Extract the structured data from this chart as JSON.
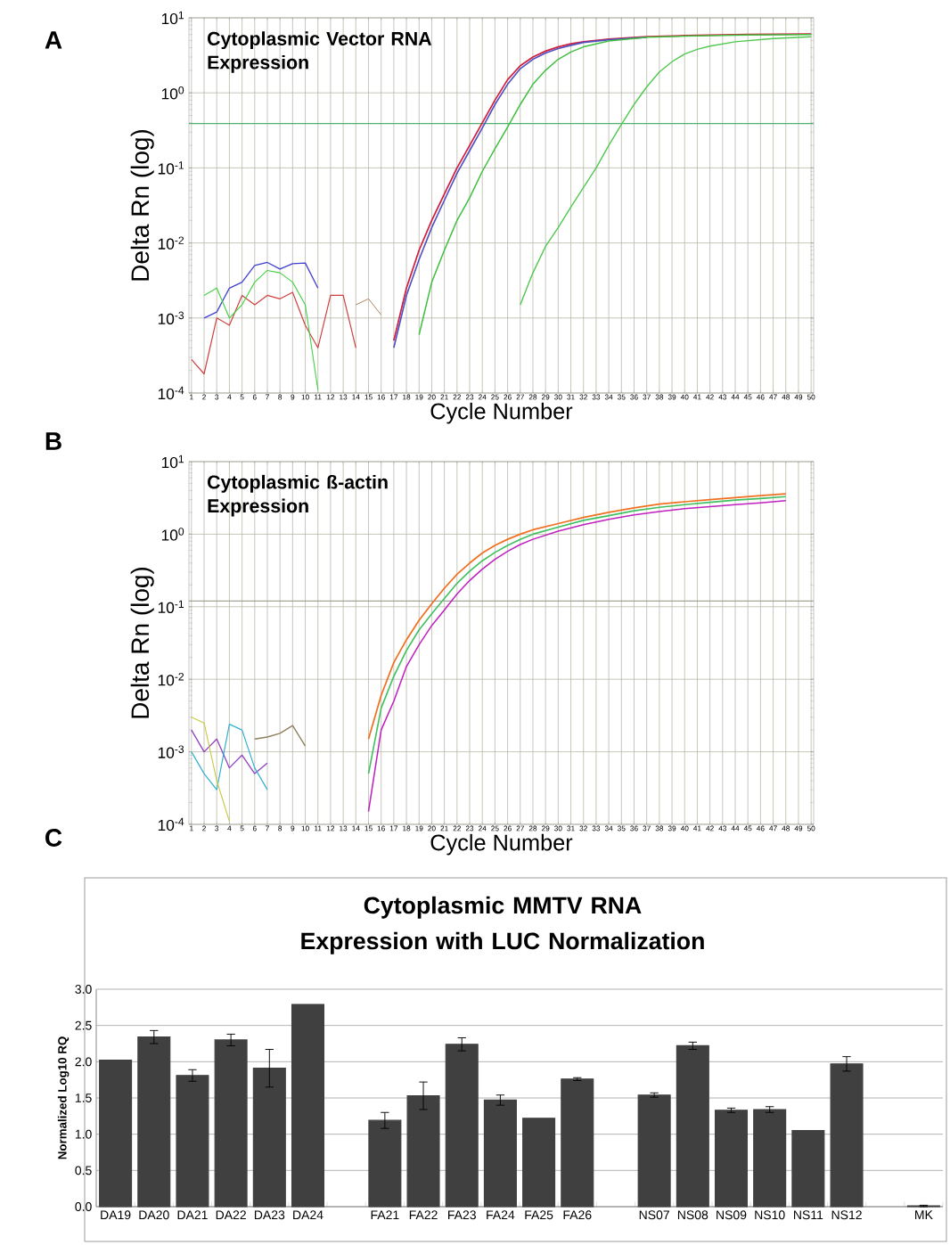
{
  "chart_data": [
    {
      "type": "line",
      "title": "Cytoplasmic Vector RNA Expression",
      "xlabel": "Cycle Number",
      "ylabel": "Delta Rn (log)",
      "annotations": [
        "A"
      ],
      "log": "y",
      "grid": true,
      "xlim": [
        0.8,
        50.2
      ],
      "xticks": [
        1,
        2,
        3,
        4,
        5,
        6,
        7,
        8,
        9,
        10,
        11,
        12,
        13,
        14,
        15,
        16,
        17,
        18,
        19,
        20,
        21,
        22,
        23,
        24,
        25,
        26,
        27,
        28,
        29,
        30,
        31,
        32,
        33,
        34,
        35,
        36,
        37,
        38,
        39,
        40,
        41,
        42,
        43,
        44,
        45,
        46,
        47,
        48,
        49,
        50
      ],
      "ylim": [
        0.0001,
        10
      ],
      "yticks": [
        {
          "value": 0.0001,
          "label": "10$^{-4}$"
        },
        {
          "value": 0.001,
          "label": "10$^{-3}$"
        },
        {
          "value": 0.01,
          "label": "10$^{-2}$"
        },
        {
          "value": 0.1,
          "label": "10$^{-1}$"
        },
        {
          "value": 1,
          "label": "10$^{0}$"
        },
        {
          "value": 10,
          "label": "10$^{1}$"
        }
      ],
      "ref_lines": [
        {
          "axis": "y",
          "value": 0.39,
          "color": "#50b070"
        }
      ],
      "series": [
        {
          "color": "#d02040",
          "x": [
            17,
            18,
            19,
            20,
            21,
            22,
            23,
            24,
            25,
            26,
            27,
            28,
            29,
            30,
            31,
            32,
            34,
            37,
            40,
            45,
            50
          ],
          "values": [
            0.0005,
            0.0025,
            0.008,
            0.02,
            0.045,
            0.1,
            0.2,
            0.4,
            0.8,
            1.5,
            2.3,
            3.0,
            3.6,
            4.1,
            4.5,
            4.8,
            5.2,
            5.6,
            5.8,
            6.0,
            6.1
          ]
        },
        {
          "color": "#5050c0",
          "x": [
            17,
            18,
            19,
            20,
            21,
            22,
            23,
            24,
            25,
            26,
            27,
            28,
            29,
            30,
            31,
            32,
            34,
            37
          ],
          "values": [
            0.0004,
            0.002,
            0.006,
            0.016,
            0.037,
            0.085,
            0.17,
            0.34,
            0.7,
            1.3,
            2.1,
            2.8,
            3.4,
            3.9,
            4.3,
            4.7,
            5.1,
            5.5
          ]
        },
        {
          "color": "#40c040",
          "x": [
            19,
            20,
            21,
            22,
            23,
            24,
            25,
            26,
            27,
            28,
            29,
            30,
            31,
            32,
            34,
            37,
            40,
            45,
            50
          ],
          "values": [
            0.0006,
            0.003,
            0.008,
            0.02,
            0.04,
            0.09,
            0.18,
            0.35,
            0.7,
            1.3,
            2.0,
            2.8,
            3.5,
            4.1,
            4.9,
            5.5,
            5.7,
            5.9,
            6.0
          ]
        },
        {
          "color": "#50c850",
          "x": [
            27,
            28,
            29,
            30,
            31,
            32,
            33,
            34,
            35,
            36,
            37,
            38,
            39,
            40,
            41,
            42,
            44,
            47,
            50
          ],
          "values": [
            0.0015,
            0.004,
            0.009,
            0.016,
            0.03,
            0.055,
            0.1,
            0.2,
            0.38,
            0.7,
            1.2,
            1.9,
            2.6,
            3.3,
            3.8,
            4.2,
            4.8,
            5.3,
            5.6
          ]
        },
        {
          "color": "#4040d0",
          "x": [
            2,
            3,
            4,
            5,
            6,
            7,
            8,
            9,
            10,
            11
          ],
          "values": [
            0.001,
            0.0012,
            0.0025,
            0.003,
            0.005,
            0.0055,
            0.0045,
            0.0053,
            0.0054,
            0.0025
          ]
        },
        {
          "color": "#d04040",
          "x": [
            1,
            2,
            3,
            4,
            5,
            6,
            7,
            8,
            9,
            10,
            11,
            12,
            13,
            14
          ],
          "values": [
            0.00028,
            0.00018,
            0.001,
            0.0008,
            0.002,
            0.0015,
            0.002,
            0.0018,
            0.0022,
            0.0008,
            0.0004,
            0.002,
            0.002,
            0.0004
          ]
        },
        {
          "color": "#40d040",
          "x": [
            2,
            3,
            4,
            5,
            6,
            7,
            8,
            9,
            10,
            11
          ],
          "values": [
            0.002,
            0.0025,
            0.001,
            0.0015,
            0.003,
            0.0043,
            0.004,
            0.003,
            0.0015,
            0.00011
          ]
        },
        {
          "color": "#b08060",
          "x": [
            14,
            15,
            16
          ],
          "values": [
            0.0015,
            0.0018,
            0.0011
          ]
        }
      ]
    },
    {
      "type": "line",
      "title": "Cytoplasmic ß-actin Expression",
      "xlabel": "Cycle Number",
      "ylabel": "Delta Rn (log)",
      "annotations": [
        "B"
      ],
      "log": "y",
      "grid": true,
      "xlim": [
        0.8,
        50.2
      ],
      "xticks": [
        1,
        2,
        3,
        4,
        5,
        6,
        7,
        8,
        9,
        10,
        11,
        12,
        13,
        14,
        15,
        16,
        17,
        18,
        19,
        20,
        21,
        22,
        23,
        24,
        25,
        26,
        27,
        28,
        29,
        30,
        31,
        32,
        33,
        34,
        35,
        36,
        37,
        38,
        39,
        40,
        41,
        42,
        43,
        44,
        45,
        46,
        47,
        48,
        49,
        50
      ],
      "ylim": [
        0.0001,
        10
      ],
      "yticks": [
        {
          "value": 0.0001,
          "label": "10$^{-4}$"
        },
        {
          "value": 0.001,
          "label": "10$^{-3}$"
        },
        {
          "value": 0.01,
          "label": "10$^{-2}$"
        },
        {
          "value": 0.1,
          "label": "10$^{-1}$"
        },
        {
          "value": 1,
          "label": "10$^{0}$"
        },
        {
          "value": 10,
          "label": "10$^{1}$"
        }
      ],
      "ref_lines": [
        {
          "axis": "y",
          "value": 0.12,
          "color": "#a0a090"
        }
      ],
      "series": [
        {
          "color": "#f07020",
          "x": [
            15,
            16,
            17,
            18,
            19,
            20,
            21,
            22,
            23,
            24,
            25,
            26,
            27,
            28,
            30,
            32,
            34,
            36,
            38,
            40,
            42,
            44,
            46,
            48
          ],
          "values": [
            0.0015,
            0.006,
            0.017,
            0.035,
            0.065,
            0.11,
            0.18,
            0.28,
            0.4,
            0.55,
            0.7,
            0.85,
            1.0,
            1.15,
            1.4,
            1.7,
            2.0,
            2.3,
            2.6,
            2.8,
            3.0,
            3.2,
            3.4,
            3.6
          ]
        },
        {
          "color": "#40c060",
          "x": [
            15,
            16,
            17,
            18,
            19,
            20,
            21,
            22,
            23,
            24,
            25,
            26,
            27,
            28,
            30,
            32,
            34,
            36,
            38,
            40,
            42,
            44,
            46,
            48
          ],
          "values": [
            0.0005,
            0.004,
            0.011,
            0.025,
            0.048,
            0.08,
            0.13,
            0.21,
            0.31,
            0.43,
            0.56,
            0.7,
            0.85,
            1.0,
            1.25,
            1.55,
            1.8,
            2.1,
            2.35,
            2.55,
            2.75,
            2.95,
            3.1,
            3.3
          ]
        },
        {
          "color": "#c020c0",
          "x": [
            15,
            16,
            17,
            18,
            19,
            20,
            21,
            22,
            23,
            24,
            25,
            26,
            27,
            28,
            30,
            32,
            34,
            36,
            38,
            40,
            42,
            44,
            46,
            48
          ],
          "values": [
            0.00015,
            0.002,
            0.005,
            0.015,
            0.03,
            0.055,
            0.09,
            0.15,
            0.23,
            0.33,
            0.45,
            0.58,
            0.72,
            0.85,
            1.1,
            1.35,
            1.6,
            1.85,
            2.05,
            2.25,
            2.4,
            2.55,
            2.7,
            2.9
          ]
        },
        {
          "color": "#908060",
          "x": [
            6,
            7,
            8,
            9,
            10
          ],
          "values": [
            0.0015,
            0.0016,
            0.0018,
            0.0023,
            0.0012
          ]
        },
        {
          "color": "#9040c0",
          "x": [
            1,
            2,
            3,
            4,
            5,
            6,
            7
          ],
          "values": [
            0.002,
            0.001,
            0.0015,
            0.0006,
            0.0009,
            0.0005,
            0.0007
          ]
        },
        {
          "color": "#30b0d0",
          "x": [
            1,
            2,
            3,
            4,
            5,
            6,
            7
          ],
          "values": [
            0.001,
            0.0005,
            0.0003,
            0.0024,
            0.002,
            0.0006,
            0.0003
          ]
        },
        {
          "color": "#c8c840",
          "x": [
            1,
            2,
            3,
            4
          ],
          "values": [
            0.003,
            0.0025,
            0.0004,
            0.00011
          ]
        }
      ]
    },
    {
      "type": "bar",
      "title": "Cytoplasmic MMTV RNA Expression with LUC Normalization",
      "ylabel": "Normalized Log10 RQ",
      "annotations": [
        "C"
      ],
      "grid": "y",
      "categories": [
        "DA19",
        "DA20",
        "DA21",
        "DA22",
        "DA23",
        "DA24",
        null,
        "FA21",
        "FA22",
        "FA23",
        "FA24",
        "FA25",
        "FA26",
        null,
        "NS07",
        "NS08",
        "NS09",
        "NS10",
        "NS11",
        "NS12",
        null,
        "MK"
      ],
      "values": [
        2.02,
        2.34,
        1.81,
        2.3,
        1.91,
        2.79,
        null,
        1.19,
        1.53,
        2.24,
        1.47,
        1.22,
        1.76,
        null,
        1.54,
        2.22,
        1.33,
        1.34,
        1.05,
        1.97,
        null,
        0.01
      ],
      "errors": [
        null,
        0.09,
        0.08,
        0.08,
        0.26,
        null,
        null,
        0.11,
        0.19,
        0.09,
        0.07,
        null,
        0.02,
        null,
        0.03,
        0.05,
        0.03,
        0.04,
        null,
        0.1,
        null,
        0.01
      ],
      "color": "#404040",
      "ylim": [
        0,
        3
      ],
      "yticks": [
        {
          "value": 0,
          "label": "0.0"
        },
        {
          "value": 0.5,
          "label": "0.5"
        },
        {
          "value": 1,
          "label": "1.0"
        },
        {
          "value": 1.5,
          "label": "1.5"
        },
        {
          "value": 2,
          "label": "2.0"
        },
        {
          "value": 2.5,
          "label": "2.5"
        },
        {
          "value": 3,
          "label": "3.0"
        }
      ]
    }
  ]
}
